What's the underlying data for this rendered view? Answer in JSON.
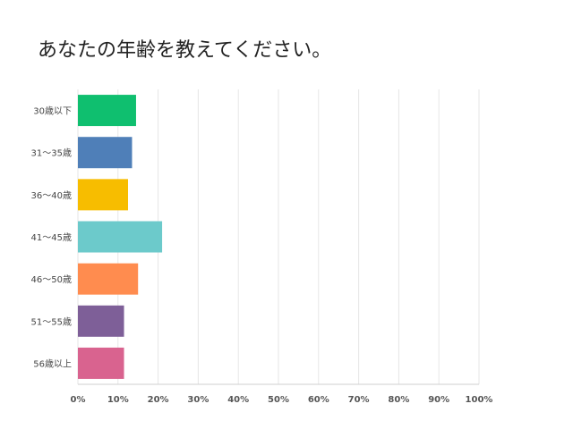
{
  "title": "あなたの年齢を教えてください。",
  "chart_data": {
    "type": "bar",
    "orientation": "horizontal",
    "categories": [
      "30歳以下",
      "31〜35歳",
      "36〜40歳",
      "41〜45歳",
      "46〜50歳",
      "51〜55歳",
      "56歳以上"
    ],
    "values": [
      14.5,
      13.5,
      12.5,
      21.0,
      15.0,
      11.5,
      11.5
    ],
    "bar_colors": [
      "#0fbf6f",
      "#4f7fb8",
      "#f7bd00",
      "#6ccacb",
      "#ff8c4f",
      "#7e5f98",
      "#d9638f"
    ],
    "xlim": [
      0,
      100
    ],
    "x_tick_labels": [
      "0%",
      "10%",
      "20%",
      "30%",
      "40%",
      "50%",
      "60%",
      "70%",
      "80%",
      "90%",
      "100%"
    ],
    "grid": true
  }
}
